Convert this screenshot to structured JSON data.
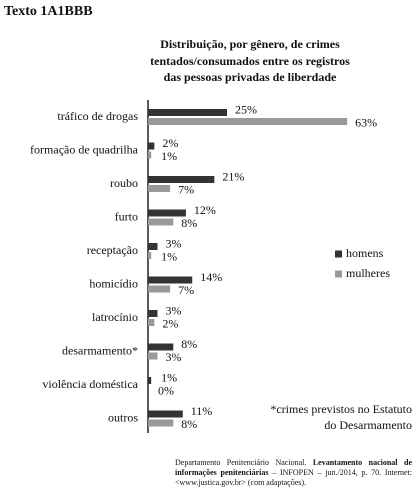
{
  "header": "Texto 1A1BBB",
  "chart_data": {
    "type": "bar",
    "title": [
      "Distribuição, por gênero, de crimes",
      "tentados/consumados entre os registros",
      "das pessoas privadas de liberdade"
    ],
    "categories": [
      "tráfico de drogas",
      "formação de quadrilha",
      "roubo",
      "furto",
      "receptação",
      "homicídio",
      "latrocínio",
      "desarmamento*",
      "violência doméstica",
      "outros"
    ],
    "series": [
      {
        "name": "homens",
        "color": "#333333",
        "values": [
          25,
          2,
          21,
          12,
          3,
          14,
          3,
          8,
          1,
          11
        ],
        "value_labels": [
          "25%",
          "2%",
          "21%",
          "12%",
          "3%",
          "14%",
          "3%",
          "8%",
          "1%",
          "11%"
        ]
      },
      {
        "name": "mulheres",
        "color": "#999999",
        "values": [
          63,
          1,
          7,
          8,
          1,
          7,
          2,
          3,
          0,
          8
        ],
        "value_labels": [
          "63%",
          "1%",
          "7%",
          "8%",
          "1%",
          "7%",
          "2%",
          "3%",
          "0%",
          "8%"
        ]
      }
    ],
    "legend": "right",
    "note": [
      "*crimes previstos no Estatuto",
      "do Desarmamento"
    ]
  },
  "source": {
    "author": "Departamento Penitenciário Nacional.",
    "title": "Levantamento nacional de informações penitenciárias",
    "rest": "– INFOPEN – jun./2014, p. 70. Internet: <www.justica.gov.br> (com adaptações)."
  }
}
